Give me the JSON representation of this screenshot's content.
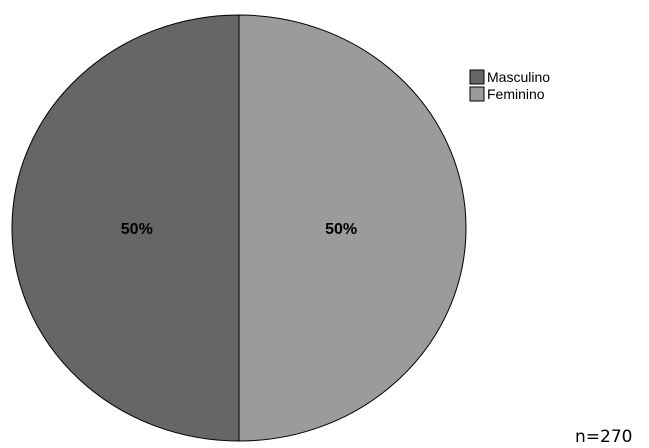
{
  "chart_data": {
    "type": "pie",
    "categories": [
      "Masculino",
      "Feminino"
    ],
    "values": [
      50,
      50
    ],
    "value_labels": [
      "50%",
      "50%"
    ],
    "colors": [
      "#666666",
      "#9b9b9b"
    ],
    "legend": {
      "entries": [
        "Masculino",
        "Feminino"
      ],
      "placement": "top-right"
    },
    "annotation": "n=270"
  }
}
